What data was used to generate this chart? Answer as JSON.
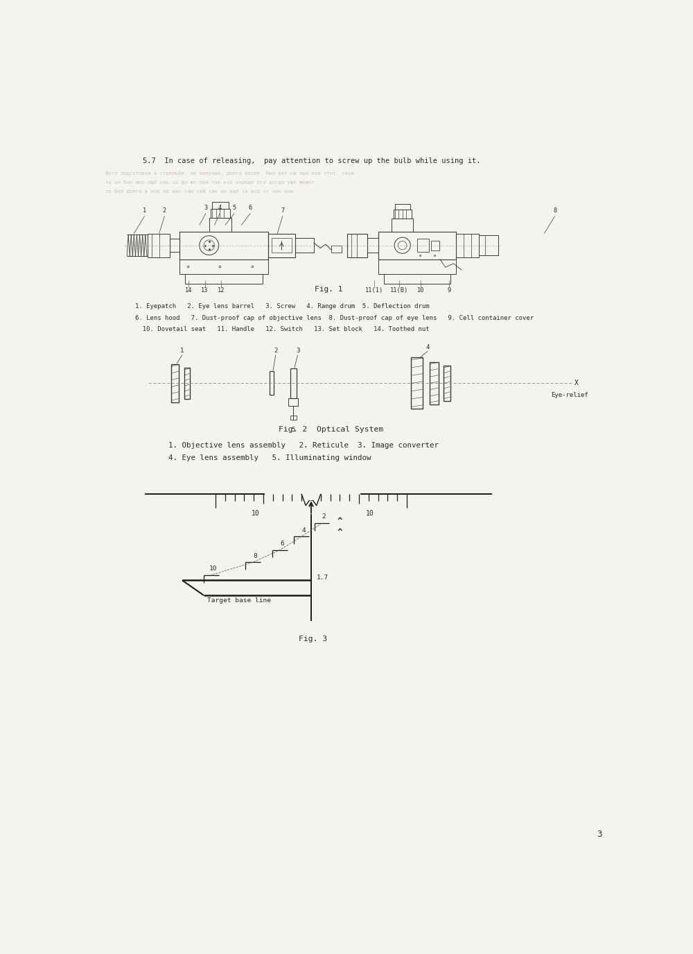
{
  "bg_color": "#f5f3ef",
  "line_color": "#3a3a3a",
  "text_color": "#2a2a2a",
  "page_width": 10.0,
  "page_height": 13.75,
  "text_57": "5.7  In case of releasing,  pay attention to screw up the bulb while using it.",
  "fig1_caption": "Fig. 1",
  "fig1_labels_line1": "1. Eyepatch   2. Eye lens barrel   3. Screw   4. Range drum  5. Deflection drum",
  "fig1_labels_line2": "6. Lens hood   7. Dust-proof cap of objective lens  8. Dust-proof cap of eye lens   9. Cell container cover",
  "fig1_labels_line3": "  10. Dovetail seat   11. Handle   12. Switch   13. Set block   14. Toothed nut",
  "fig2_caption": "Fig. 2  Optical System",
  "fig2_labels_line1": "1. Objective lens assembly   2. Reticule  3. Image converter",
  "fig2_labels_line2": "4. Eye lens assembly   5. Illuminating window",
  "fig3_caption": "Fig. 3",
  "page_num": "3"
}
